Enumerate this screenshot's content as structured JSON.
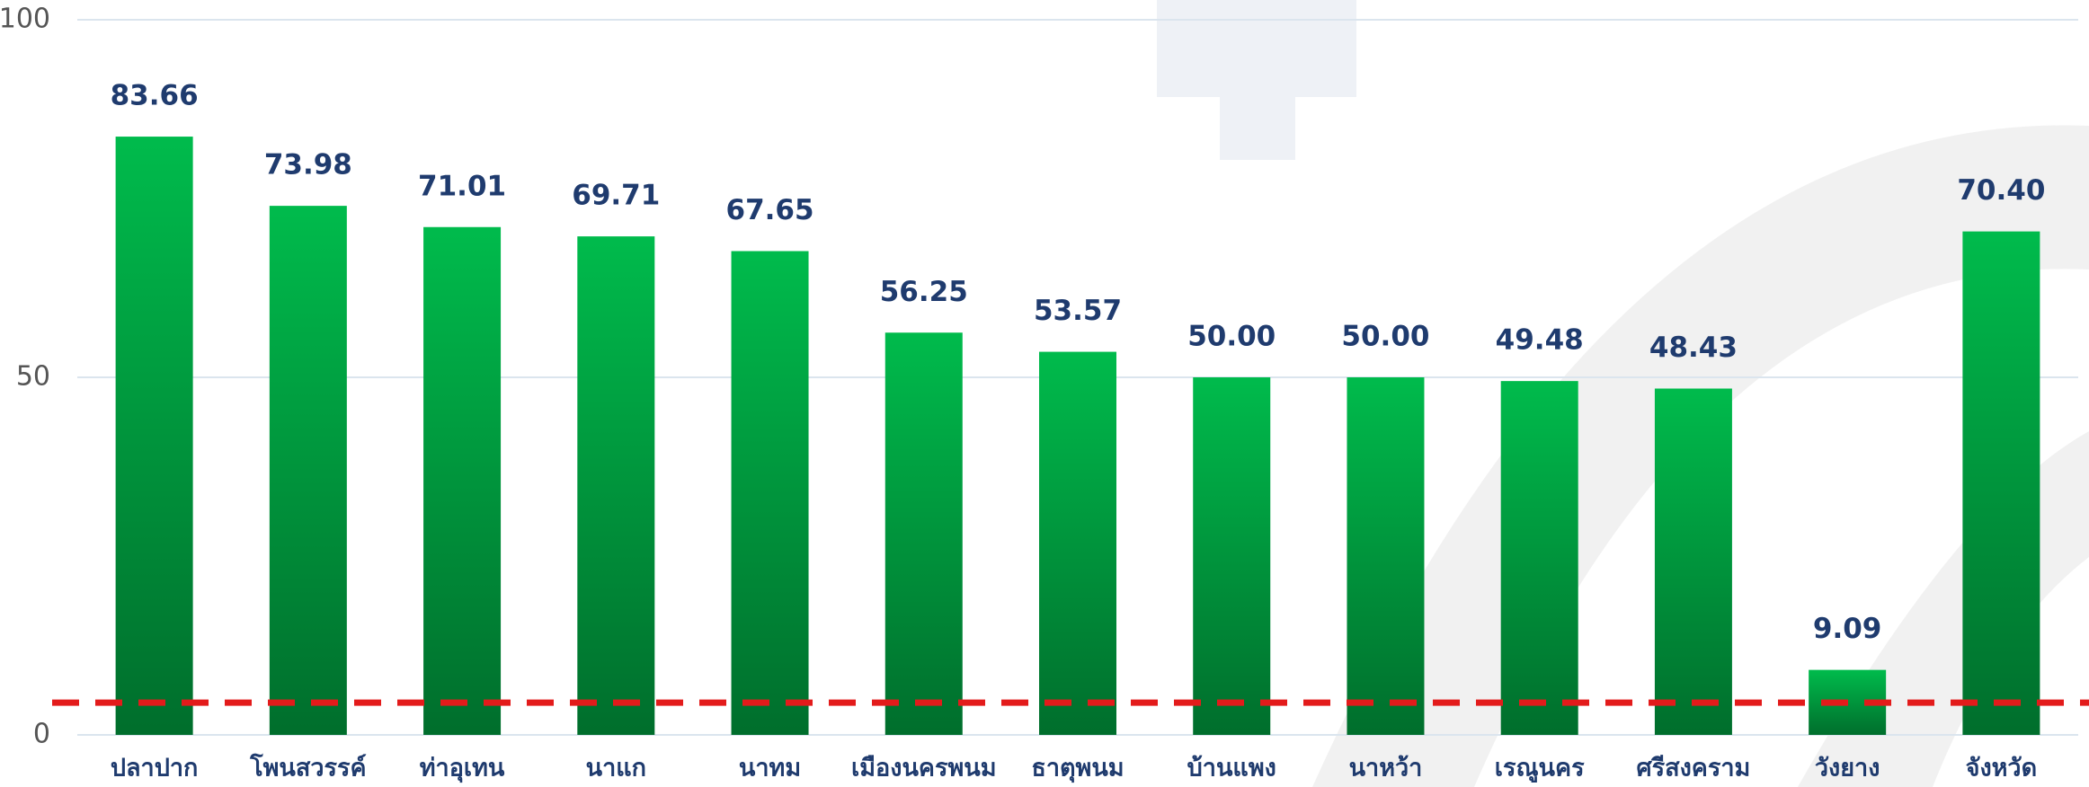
{
  "chart_data": {
    "type": "bar",
    "categories": [
      "ปลาปาก",
      "โพนสวรรค์",
      "ท่าอุเทน",
      "นาแก",
      "นาทม",
      "เมืองนครพนม",
      "ธาตุพนม",
      "บ้านแพง",
      "นาหว้า",
      "เรณูนคร",
      "ศรีสงคราม",
      "วังยาง",
      "จังหวัด"
    ],
    "values": [
      83.66,
      73.98,
      71.01,
      69.71,
      67.65,
      56.25,
      53.57,
      50,
      50,
      49.48,
      48.43,
      9.09,
      70.4
    ],
    "value_labels": [
      "83.66",
      "73.98",
      "71.01",
      "69.71",
      "67.65",
      "56.25",
      "53.57",
      "50.00",
      "50.00",
      "49.48",
      "48.43",
      "9.09",
      "70.40"
    ],
    "color": "#00b84a",
    "ylim": [
      0,
      100
    ],
    "yticks": [
      0,
      50,
      100
    ],
    "grid": true,
    "reference_line": {
      "value": 4.5,
      "color": "#e31b1b"
    }
  }
}
